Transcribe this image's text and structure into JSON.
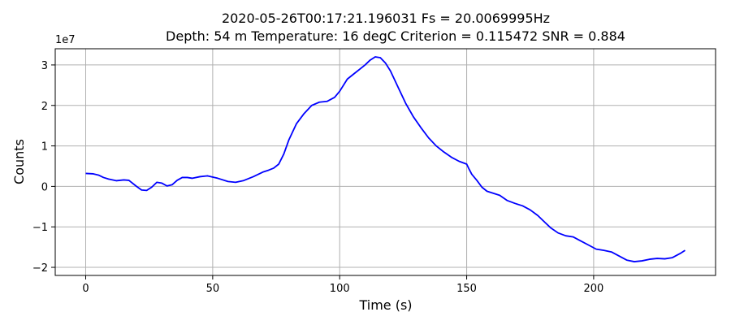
{
  "chart_data": {
    "type": "line",
    "title_lines": [
      "2020-05-26T00:17:21.196031     Fs = 20.0069995Hz",
      "Depth: 54 m     Temperature: 16 degC     Criterion = 0.115472     SNR = 0.884"
    ],
    "xlabel": "Time (s)",
    "ylabel": "Counts",
    "y_offset_label": "1e7",
    "y_scale": 10000000,
    "xlim": [
      -12,
      248
    ],
    "ylim": [
      -2.2,
      3.4
    ],
    "xticks": [
      0,
      50,
      100,
      150,
      200
    ],
    "yticks": [
      -2,
      -1,
      0,
      1,
      2,
      3
    ],
    "ytick_labels": [
      "−2",
      "−1",
      "0",
      "1",
      "2",
      "3"
    ],
    "grid": true,
    "legend": "none",
    "series": [
      {
        "color": "#0000ff",
        "x": [
          0,
          3,
          5,
          7,
          9,
          12,
          15,
          17,
          20,
          22,
          24,
          26,
          28,
          30,
          32,
          34,
          36,
          38,
          40,
          42,
          45,
          48,
          52,
          56,
          59,
          62,
          66,
          70,
          72,
          74,
          76,
          78,
          80,
          83,
          86,
          89,
          92,
          95,
          98,
          100,
          103,
          106,
          108,
          110,
          112,
          114,
          116,
          118,
          120,
          123,
          126,
          129,
          132,
          135,
          138,
          141,
          144,
          147,
          150,
          151,
          152,
          154,
          156,
          158,
          160,
          163,
          166,
          169,
          172,
          175,
          178,
          181,
          183,
          186,
          189,
          192,
          195,
          198,
          201,
          204,
          207,
          210,
          213,
          216,
          219,
          222,
          225,
          228,
          231,
          234,
          236
        ],
        "y": [
          0.32,
          0.31,
          0.28,
          0.22,
          0.18,
          0.14,
          0.16,
          0.15,
          0.0,
          -0.09,
          -0.1,
          -0.02,
          0.1,
          0.08,
          0.01,
          0.04,
          0.15,
          0.22,
          0.22,
          0.2,
          0.24,
          0.26,
          0.2,
          0.12,
          0.1,
          0.14,
          0.24,
          0.36,
          0.4,
          0.45,
          0.55,
          0.8,
          1.15,
          1.55,
          1.8,
          2.0,
          2.08,
          2.1,
          2.2,
          2.35,
          2.65,
          2.8,
          2.9,
          3.0,
          3.12,
          3.2,
          3.18,
          3.05,
          2.85,
          2.45,
          2.05,
          1.72,
          1.45,
          1.2,
          1.0,
          0.85,
          0.72,
          0.62,
          0.55,
          0.42,
          0.3,
          0.15,
          -0.02,
          -0.12,
          -0.16,
          -0.22,
          -0.35,
          -0.42,
          -0.48,
          -0.58,
          -0.72,
          -0.9,
          -1.02,
          -1.15,
          -1.22,
          -1.25,
          -1.35,
          -1.45,
          -1.55,
          -1.58,
          -1.62,
          -1.72,
          -1.82,
          -1.86,
          -1.84,
          -1.8,
          -1.78,
          -1.79,
          -1.76,
          -1.66,
          -1.58
        ]
      }
    ]
  }
}
